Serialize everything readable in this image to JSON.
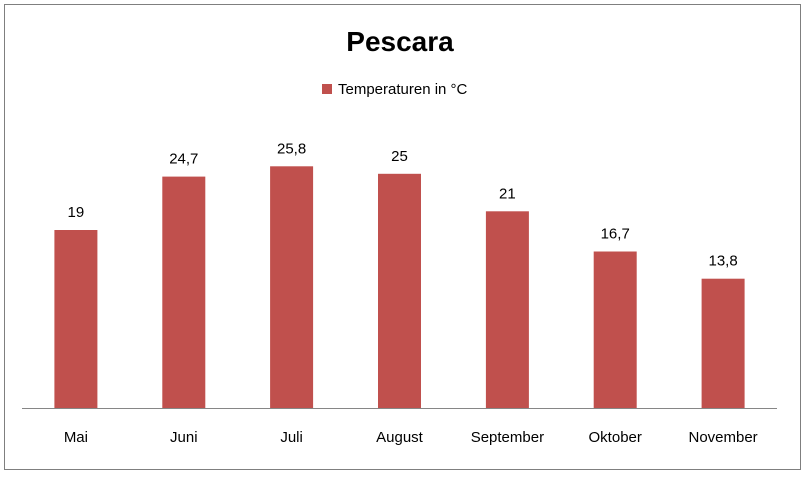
{
  "chart_data": {
    "type": "bar",
    "title": "Pescara",
    "categories": [
      "Mai",
      "Juni",
      "Juli",
      "August",
      "September",
      "Oktober",
      "November"
    ],
    "series": [
      {
        "name": "Temperaturen  in °C",
        "values": [
          19,
          24.7,
          25.8,
          25,
          21,
          16.7,
          13.8
        ],
        "labels": [
          "19",
          "24,7",
          "25,8",
          "25",
          "21",
          "16,7",
          "13,8"
        ],
        "color": "#c0504d"
      }
    ],
    "ylim": [
      0,
      26
    ],
    "xlabel": "",
    "ylabel": "",
    "grid": false,
    "legend_position": "top",
    "axis_color": "#868686"
  }
}
